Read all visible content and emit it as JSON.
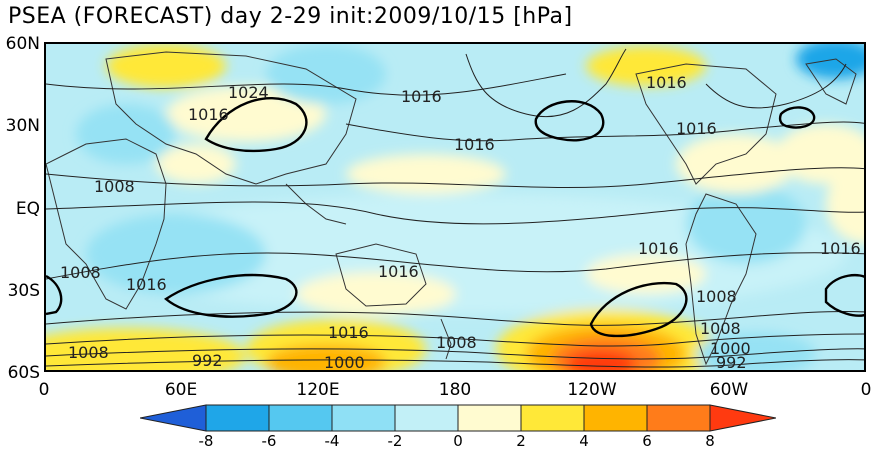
{
  "title": "PSEA (FORECAST) day 2-29 init:2009/10/15  [hPa]",
  "y_axis_labels": [
    "60N",
    "30N",
    "EQ",
    "30S",
    "60S"
  ],
  "x_axis_labels": [
    "0",
    "60E",
    "120E",
    "180",
    "120W",
    "60W",
    "0"
  ],
  "colorbar": {
    "ticks": [
      "-8",
      "-6",
      "-4",
      "-2",
      "0",
      "2",
      "4",
      "6",
      "8"
    ],
    "colors": [
      "#1f5fd8",
      "#1fa6e8",
      "#55c8f0",
      "#8fe0f5",
      "#c2f0f7",
      "#fffbd0",
      "#ffe838",
      "#ffb400",
      "#ff7c1a",
      "#ff3a10"
    ]
  },
  "contour_labels": [
    "1024",
    "1016",
    "1016",
    "1016",
    "1016",
    "1016",
    "1008",
    "1008",
    "1016",
    "1016",
    "1016",
    "1008",
    "1008",
    "1016",
    "1000",
    "992",
    "1008",
    "1008",
    "1000",
    "992"
  ]
}
